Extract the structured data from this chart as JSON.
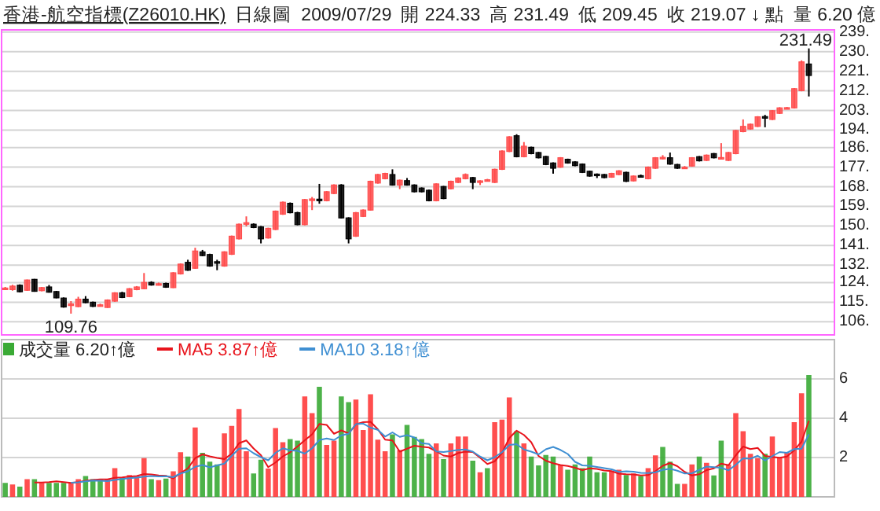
{
  "chart_data": [
    {
      "type": "candlestick",
      "title": "香港-航空指標(Z26010.HK)",
      "subtitle": "日線圖",
      "annotations": [
        "2009/07/29",
        "開 224.33",
        "高 231.49",
        "低 209.45",
        "收 219.07 ↓ 點",
        "量 6.20 億",
        {
          "text": "231.49",
          "y": 231.49
        },
        {
          "text": "109.76",
          "y": 109.76
        }
      ],
      "categories": [
        null,
        null,
        null,
        null,
        null,
        null,
        null,
        null,
        null,
        null,
        null,
        null,
        null,
        null,
        null,
        null,
        null,
        null,
        null,
        null,
        null,
        null,
        null,
        null,
        null,
        null,
        null,
        null,
        null,
        null,
        null,
        null,
        null,
        null,
        null,
        null,
        null,
        null,
        null,
        null,
        null,
        null,
        null,
        null,
        null,
        null,
        null,
        null,
        null,
        null,
        null,
        null,
        null,
        null,
        null,
        null,
        null,
        null,
        null,
        null,
        null,
        null,
        null,
        null,
        null,
        null,
        null,
        null,
        null,
        null,
        null,
        null,
        null,
        null,
        null,
        null,
        null,
        null,
        null,
        null,
        null,
        null,
        null,
        null,
        null,
        null,
        null,
        null,
        null,
        null,
        null,
        null,
        null,
        null,
        null,
        null,
        null,
        null,
        null,
        null,
        null,
        null,
        null,
        null,
        null,
        null,
        null,
        null,
        null,
        null,
        null
      ],
      "ohlc": [
        [
          121.3,
          122,
          121,
          121.5
        ],
        [
          120.8,
          123,
          120.3,
          122.4
        ],
        [
          122.8,
          123.2,
          119.5,
          119.8
        ],
        [
          120.5,
          125.4,
          120.2,
          125.2
        ],
        [
          125.5,
          125.7,
          119.8,
          120
        ],
        [
          120.3,
          122,
          120,
          121.7
        ],
        [
          122,
          122.9,
          119.4,
          119.6
        ],
        [
          119.9,
          120.2,
          116.8,
          117
        ],
        [
          116.9,
          117.2,
          112.5,
          112.8
        ],
        [
          113.5,
          115.5,
          109.76,
          114.2
        ],
        [
          113,
          117.5,
          112.7,
          116.4
        ],
        [
          116.4,
          117.8,
          114.5,
          114.8
        ],
        [
          115,
          115.3,
          112.8,
          113.1
        ],
        [
          113.5,
          114.3,
          113,
          113.8
        ],
        [
          112.6,
          116.3,
          112.4,
          116
        ],
        [
          115.5,
          119.6,
          115.2,
          119.3
        ],
        [
          119.3,
          119.8,
          116.9,
          117.2
        ],
        [
          117.6,
          121.5,
          117.3,
          121.2
        ],
        [
          120.8,
          122.4,
          120.5,
          122
        ],
        [
          121.2,
          128.4,
          121,
          124.1
        ],
        [
          124.1,
          124.6,
          122.6,
          122.9
        ],
        [
          123,
          124,
          122.7,
          123.5
        ],
        [
          123.6,
          124,
          121.6,
          121.9
        ],
        [
          121.7,
          128.8,
          121.5,
          128.5
        ],
        [
          128,
          132.8,
          127.7,
          132.5
        ],
        [
          133.3,
          134.5,
          129.4,
          129.7
        ],
        [
          130.6,
          140,
          130.3,
          138.5
        ],
        [
          138.1,
          139,
          136.1,
          136.4
        ],
        [
          136.9,
          137.3,
          131.3,
          131.6
        ],
        [
          133.6,
          134.5,
          129.7,
          133.1
        ],
        [
          131.6,
          138.4,
          131.3,
          138.1
        ],
        [
          137,
          145.6,
          136.7,
          145.3
        ],
        [
          144.1,
          151.1,
          143.8,
          150.8
        ],
        [
          151,
          154.4,
          149.8,
          151.5
        ],
        [
          150.8,
          151.2,
          149,
          149.3
        ],
        [
          149.6,
          150,
          142,
          144.1
        ],
        [
          144.5,
          149.2,
          144.2,
          148.9
        ],
        [
          148.4,
          157.1,
          148.1,
          156.8
        ],
        [
          155.4,
          161.2,
          155.1,
          160.9
        ],
        [
          160.4,
          160.8,
          155.8,
          156.1
        ],
        [
          156.1,
          156.5,
          150.3,
          150.6
        ],
        [
          150.6,
          162.4,
          150.3,
          162.1
        ],
        [
          161.8,
          163.3,
          157.3,
          162.4
        ],
        [
          162.3,
          169.3,
          160.2,
          161.6
        ],
        [
          161.6,
          166,
          161.3,
          165.7
        ],
        [
          164.9,
          169.1,
          164.6,
          168.8
        ],
        [
          168.8,
          169.2,
          153.4,
          153.7
        ],
        [
          153.7,
          154,
          142,
          144.1
        ],
        [
          145.3,
          156.4,
          145,
          156.1
        ],
        [
          154.4,
          157.6,
          154.1,
          157.3
        ],
        [
          157.3,
          170.8,
          157,
          170.5
        ],
        [
          169.7,
          173.9,
          169.4,
          173.6
        ],
        [
          171.7,
          174.4,
          171.4,
          174.1
        ],
        [
          173.6,
          176,
          168.5,
          168.8
        ],
        [
          168.8,
          171.3,
          166.9,
          171
        ],
        [
          170.8,
          172,
          168.5,
          168.8
        ],
        [
          168.8,
          169.1,
          165.4,
          165.7
        ],
        [
          167.4,
          167.7,
          165.4,
          165.7
        ],
        [
          166.4,
          166.7,
          161.3,
          161.6
        ],
        [
          161.6,
          169.6,
          161.3,
          169.3
        ],
        [
          168.1,
          168.4,
          162.3,
          162.6
        ],
        [
          167.1,
          170.8,
          166.8,
          170.5
        ],
        [
          170,
          172.3,
          169.7,
          172
        ],
        [
          171.7,
          174.1,
          171.4,
          173.6
        ],
        [
          172.2,
          172.5,
          166.9,
          170
        ],
        [
          170.3,
          171,
          168.8,
          170.7
        ],
        [
          170.8,
          171.6,
          170.5,
          171.2
        ],
        [
          170,
          176.3,
          169.7,
          176
        ],
        [
          176,
          184.7,
          175.7,
          184.4
        ],
        [
          184.2,
          191.2,
          183.9,
          190.9
        ],
        [
          191.4,
          192.1,
          181.5,
          181.8
        ],
        [
          181.8,
          188.5,
          181.5,
          186.6
        ],
        [
          186.1,
          186.4,
          182.9,
          183.2
        ],
        [
          183.7,
          184,
          181,
          181.3
        ],
        [
          181.9,
          182.2,
          177.9,
          178.2
        ],
        [
          178.9,
          179.2,
          174,
          176.5
        ],
        [
          177,
          181.6,
          176.7,
          181.3
        ],
        [
          180.6,
          180.9,
          178.6,
          178.9
        ],
        [
          179.4,
          179.7,
          177.4,
          177.7
        ],
        [
          178.4,
          178.7,
          174.3,
          174.6
        ],
        [
          175.1,
          175.4,
          172.6,
          172.9
        ],
        [
          173.8,
          174.1,
          172,
          173.4
        ],
        [
          173.6,
          173.9,
          171.9,
          172.2
        ],
        [
          172.4,
          174.4,
          172.1,
          174.1
        ],
        [
          173.6,
          175.6,
          173.3,
          175.3
        ],
        [
          174.6,
          174.9,
          170.2,
          170.5
        ],
        [
          170.7,
          173.2,
          170.4,
          172.9
        ],
        [
          173.1,
          173.6,
          172.3,
          172.7
        ],
        [
          171.7,
          177.3,
          171.4,
          177
        ],
        [
          176.5,
          181.6,
          176.2,
          181.3
        ],
        [
          181,
          182.5,
          180.5,
          181.5
        ],
        [
          181.3,
          183.7,
          178.1,
          178.4
        ],
        [
          178.2,
          178.5,
          176.2,
          176.5
        ],
        [
          176.8,
          177.5,
          176.3,
          177
        ],
        [
          177.5,
          181.6,
          177.2,
          181.3
        ],
        [
          181.8,
          182.1,
          179.6,
          179.9
        ],
        [
          180.1,
          182.8,
          179.8,
          182.5
        ],
        [
          183.2,
          183.5,
          181,
          181.3
        ],
        [
          181.2,
          188,
          180.8,
          181.4
        ],
        [
          180.1,
          184,
          179.8,
          183.7
        ],
        [
          183.2,
          194.1,
          182.9,
          193.8
        ],
        [
          193.3,
          198.9,
          193,
          195.7
        ],
        [
          194.5,
          197,
          194.2,
          196.7
        ],
        [
          195.7,
          200.4,
          195.4,
          200.1
        ],
        [
          200.2,
          201,
          195.3,
          199.9
        ],
        [
          198.9,
          203.2,
          198.6,
          202.9
        ],
        [
          201.7,
          204.5,
          201.4,
          204.2
        ],
        [
          204,
          204.6,
          203.7,
          204.3
        ],
        [
          204.2,
          213.3,
          203.9,
          213
        ],
        [
          212.1,
          226,
          211.8,
          225.3
        ],
        [
          224.33,
          231.49,
          209.45,
          219.07
        ]
      ],
      "colors": [
        "#ff4d4d",
        "#ff4d4d",
        "#000000",
        "#ff4d4d",
        "#000000",
        "#ff4d4d",
        "#000000",
        "#000000",
        "#000000",
        "#ff4d4d",
        "#ff4d4d",
        "#000000",
        "#000000",
        "#ff4d4d",
        "#ff4d4d",
        "#ff4d4d",
        "#000000",
        "#ff4d4d",
        "#ff4d4d",
        "#ff4d4d",
        "#000000",
        "#ff4d4d",
        "#000000",
        "#ff4d4d",
        "#ff4d4d",
        "#000000",
        "#ff4d4d",
        "#000000",
        "#000000",
        "#000000",
        "#ff4d4d",
        "#ff4d4d",
        "#ff4d4d",
        "#ff4d4d",
        "#000000",
        "#000000",
        "#ff4d4d",
        "#ff4d4d",
        "#ff4d4d",
        "#000000",
        "#000000",
        "#ff4d4d",
        "#ff4d4d",
        "#000000",
        "#ff4d4d",
        "#ff4d4d",
        "#000000",
        "#000000",
        "#ff4d4d",
        "#ff4d4d",
        "#ff4d4d",
        "#ff4d4d",
        "#ff4d4d",
        "#000000",
        "#ff4d4d",
        "#000000",
        "#000000",
        "#000000",
        "#000000",
        "#ff4d4d",
        "#000000",
        "#ff4d4d",
        "#ff4d4d",
        "#ff4d4d",
        "#000000",
        "#ff4d4d",
        "#ff4d4d",
        "#ff4d4d",
        "#ff4d4d",
        "#ff4d4d",
        "#000000",
        "#ff4d4d",
        "#000000",
        "#000000",
        "#000000",
        "#000000",
        "#ff4d4d",
        "#000000",
        "#000000",
        "#000000",
        "#000000",
        "#000000",
        "#000000",
        "#ff4d4d",
        "#ff4d4d",
        "#000000",
        "#ff4d4d",
        "#000000",
        "#ff4d4d",
        "#ff4d4d",
        "#ff4d4d",
        "#000000",
        "#000000",
        "#ff4d4d",
        "#ff4d4d",
        "#000000",
        "#ff4d4d",
        "#000000",
        "#ff4d4d",
        "#ff4d4d",
        "#ff4d4d",
        "#ff4d4d",
        "#ff4d4d",
        "#ff4d4d",
        "#000000",
        "#ff4d4d",
        "#ff4d4d",
        "#ff4d4d",
        "#ff4d4d",
        "#ff4d4d",
        "#000000"
      ],
      "ylim": [
        100,
        240
      ],
      "yticks": [
        {
          "value": 106,
          "label": "106."
        },
        {
          "value": 115,
          "label": "115."
        },
        {
          "value": 124,
          "label": "124."
        },
        {
          "value": 132,
          "label": "132."
        },
        {
          "value": 141,
          "label": "141."
        },
        {
          "value": 150,
          "label": "150."
        },
        {
          "value": 159,
          "label": "159."
        },
        {
          "value": 168,
          "label": "168."
        },
        {
          "value": 177,
          "label": "177."
        },
        {
          "value": 186,
          "label": "186."
        },
        {
          "value": 194,
          "label": "194."
        },
        {
          "value": 203,
          "label": "203."
        },
        {
          "value": 212,
          "label": "212."
        },
        {
          "value": 221,
          "label": "221."
        },
        {
          "value": 230,
          "label": "230."
        },
        {
          "value": 239,
          "label": "239."
        }
      ],
      "grid": "y"
    },
    {
      "type": "bar",
      "categories": [
        null,
        null,
        null,
        null,
        null,
        null,
        null,
        null,
        null,
        null,
        null,
        null,
        null,
        null,
        null,
        null,
        null,
        null,
        null,
        null,
        null,
        null,
        null,
        null,
        null,
        null,
        null,
        null,
        null,
        null,
        null,
        null,
        null,
        null,
        null,
        null,
        null,
        null,
        null,
        null,
        null,
        null,
        null,
        null,
        null,
        null,
        null,
        null,
        null,
        null,
        null,
        null,
        null,
        null,
        null,
        null,
        null,
        null,
        null,
        null,
        null,
        null,
        null,
        null,
        null,
        null,
        null,
        null,
        null,
        null,
        null,
        null,
        null,
        null,
        null,
        null,
        null,
        null,
        null,
        null,
        null,
        null,
        null,
        null,
        null,
        null,
        null,
        null,
        null,
        null,
        null,
        null,
        null,
        null,
        null,
        null,
        null,
        null,
        null,
        null,
        null,
        null,
        null,
        null,
        null,
        null,
        null,
        null,
        null,
        null,
        null
      ],
      "series": [
        {
          "name": "成交量 6.20↑億",
          "type": "bar",
          "values": [
            0.71,
            0.63,
            0.52,
            0.9,
            0.9,
            0.71,
            0.71,
            0.71,
            0.71,
            0.71,
            0.9,
            1.06,
            0.9,
            0.9,
            0.9,
            1.46,
            0.98,
            1.11,
            1.03,
            1.97,
            0.9,
            0.85,
            0.93,
            1.3,
            2.27,
            2.05,
            3.53,
            2.24,
            1.79,
            1.65,
            3.23,
            3.61,
            4.47,
            2.32,
            1.19,
            1.89,
            1.44,
            3.5,
            2.78,
            2.94,
            2.86,
            5.11,
            4.26,
            5.6,
            2.64,
            2.86,
            5.11,
            4.82,
            4.95,
            3.4,
            5.22,
            2.91,
            2.32,
            3.18,
            2.38,
            3.66,
            3.05,
            2.94,
            2.19,
            2.72,
            1.92,
            2.72,
            3.07,
            3.07,
            1.84,
            1.25,
            1.46,
            3.8,
            3.93,
            5.06,
            3.34,
            2.72,
            2.05,
            1.6,
            2.13,
            2.05,
            1.6,
            1.38,
            1.65,
            1.46,
            2.05,
            1.25,
            1.25,
            1.3,
            1.38,
            1.11,
            1.19,
            1.06,
            1.46,
            2.11,
            2.54,
            1.79,
            0.66,
            0.66,
            1.65,
            2.05,
            1.73,
            1.09,
            2.86,
            1.65,
            4.26,
            3.34,
            2.19,
            1.97,
            2.19,
            3.07,
            2.0,
            2.27,
            3.8,
            5.27,
            6.2
          ],
          "colors": [
            "#3aaa35",
            "#ff3b3b",
            "#3aaa35",
            "#ff3b3b",
            "#3aaa35",
            "#ff3b3b",
            "#3aaa35",
            "#3aaa35",
            "#3aaa35",
            "#ff3b3b",
            "#ff3b3b",
            "#3aaa35",
            "#3aaa35",
            "#3aaa35",
            "#ff3b3b",
            "#ff3b3b",
            "#3aaa35",
            "#ff3b3b",
            "#ff3b3b",
            "#ff3b3b",
            "#3aaa35",
            "#ff3b3b",
            "#3aaa35",
            "#ff3b3b",
            "#ff3b3b",
            "#3aaa35",
            "#ff3b3b",
            "#3aaa35",
            "#3aaa35",
            "#3aaa35",
            "#ff3b3b",
            "#ff3b3b",
            "#ff3b3b",
            "#ff3b3b",
            "#3aaa35",
            "#3aaa35",
            "#ff3b3b",
            "#ff3b3b",
            "#ff3b3b",
            "#3aaa35",
            "#3aaa35",
            "#ff3b3b",
            "#ff3b3b",
            "#3aaa35",
            "#ff3b3b",
            "#ff3b3b",
            "#3aaa35",
            "#3aaa35",
            "#ff3b3b",
            "#ff3b3b",
            "#ff3b3b",
            "#ff3b3b",
            "#ff3b3b",
            "#3aaa35",
            "#ff3b3b",
            "#3aaa35",
            "#3aaa35",
            "#3aaa35",
            "#3aaa35",
            "#ff3b3b",
            "#3aaa35",
            "#ff3b3b",
            "#ff3b3b",
            "#ff3b3b",
            "#3aaa35",
            "#ff3b3b",
            "#3aaa35",
            "#ff3b3b",
            "#ff3b3b",
            "#ff3b3b",
            "#3aaa35",
            "#ff3b3b",
            "#3aaa35",
            "#3aaa35",
            "#3aaa35",
            "#3aaa35",
            "#ff3b3b",
            "#3aaa35",
            "#3aaa35",
            "#3aaa35",
            "#3aaa35",
            "#3aaa35",
            "#3aaa35",
            "#ff3b3b",
            "#ff3b3b",
            "#3aaa35",
            "#ff3b3b",
            "#3aaa35",
            "#ff3b3b",
            "#ff3b3b",
            "#3aaa35",
            "#3aaa35",
            "#3aaa35",
            "#ff3b3b",
            "#ff3b3b",
            "#3aaa35",
            "#ff3b3b",
            "#3aaa35",
            "#3aaa35",
            "#ff3b3b",
            "#ff3b3b",
            "#ff3b3b",
            "#ff3b3b",
            "#ff3b3b",
            "#3aaa35",
            "#ff3b3b",
            "#ff3b3b",
            "#ff3b3b",
            "#ff3b3b",
            "#ff3b3b",
            "#3aaa35"
          ]
        },
        {
          "name": "MA5 3.87↑億",
          "type": "line",
          "color": "#e8141c",
          "values": [
            null,
            null,
            null,
            null,
            0.73,
            0.73,
            0.75,
            0.79,
            0.75,
            0.71,
            0.75,
            0.82,
            0.86,
            0.89,
            0.89,
            0.97,
            0.99,
            1.03,
            1.06,
            1.16,
            1.14,
            1.09,
            1.07,
            0.94,
            1.21,
            1.45,
            1.97,
            2.16,
            2.06,
            1.98,
            1.92,
            2.2,
            2.73,
            2.87,
            2.46,
            2.12,
            1.51,
            1.75,
            2.06,
            2.27,
            2.56,
            2.88,
            3.18,
            3.71,
            3.66,
            3.21,
            3.38,
            3.23,
            3.69,
            3.8,
            3.82,
            3.44,
            2.91,
            2.87,
            2.3,
            2.45,
            2.6,
            2.55,
            2.51,
            2.32,
            2.1,
            2.05,
            2.23,
            2.3,
            2.28,
            1.99,
            1.67,
            1.81,
            2.23,
            2.99,
            3.37,
            3.15,
            2.78,
            2.08,
            1.84,
            1.71,
            1.62,
            1.57,
            1.48,
            1.36,
            1.45,
            1.42,
            1.34,
            1.31,
            1.18,
            1.15,
            1.14,
            1.09,
            1.11,
            1.31,
            1.58,
            1.72,
            1.56,
            1.27,
            1.09,
            1.15,
            1.36,
            1.45,
            1.69,
            1.61,
            2.11,
            2.56,
            2.43,
            2.49,
            2.08,
            2.03,
            1.99,
            2.05,
            2.37,
            2.81,
            3.87
          ]
        },
        {
          "name": "MA10 3.18↑億",
          "type": "line",
          "color": "#3f8fd2",
          "values": [
            null,
            null,
            null,
            null,
            null,
            null,
            null,
            null,
            null,
            0.72,
            0.74,
            0.79,
            0.83,
            0.82,
            0.8,
            0.86,
            0.91,
            0.95,
            0.98,
            1.03,
            1.06,
            1.04,
            1.05,
            1.0,
            1.19,
            1.3,
            1.53,
            1.62,
            1.5,
            1.6,
            1.69,
            2.09,
            2.45,
            2.47,
            2.22,
            2.02,
            1.86,
            2.24,
            2.47,
            2.37,
            2.34,
            2.2,
            2.47,
            2.89,
            2.97,
            2.89,
            3.13,
            3.21,
            3.7,
            3.73,
            3.52,
            3.41,
            3.07,
            3.28,
            3.05,
            3.14,
            3.02,
            2.73,
            2.69,
            2.31,
            2.28,
            2.33,
            2.39,
            2.41,
            2.3,
            2.05,
            1.86,
            2.02,
            2.27,
            2.64,
            2.68,
            2.41,
            2.3,
            2.16,
            2.42,
            2.54,
            2.39,
            2.18,
            1.78,
            1.6,
            1.58,
            1.52,
            1.46,
            1.4,
            1.27,
            1.3,
            1.28,
            1.22,
            1.21,
            1.25,
            1.37,
            1.43,
            1.33,
            1.19,
            1.2,
            1.37,
            1.54,
            1.51,
            1.48,
            1.35,
            1.63,
            1.96,
            1.94,
            2.09,
            1.85,
            2.07,
            2.28,
            2.24,
            2.43,
            2.45,
            3.18
          ]
        }
      ],
      "ylim": [
        0,
        8
      ],
      "yticks": [
        2,
        4,
        6
      ],
      "grid": "y",
      "legend": "top left"
    }
  ]
}
